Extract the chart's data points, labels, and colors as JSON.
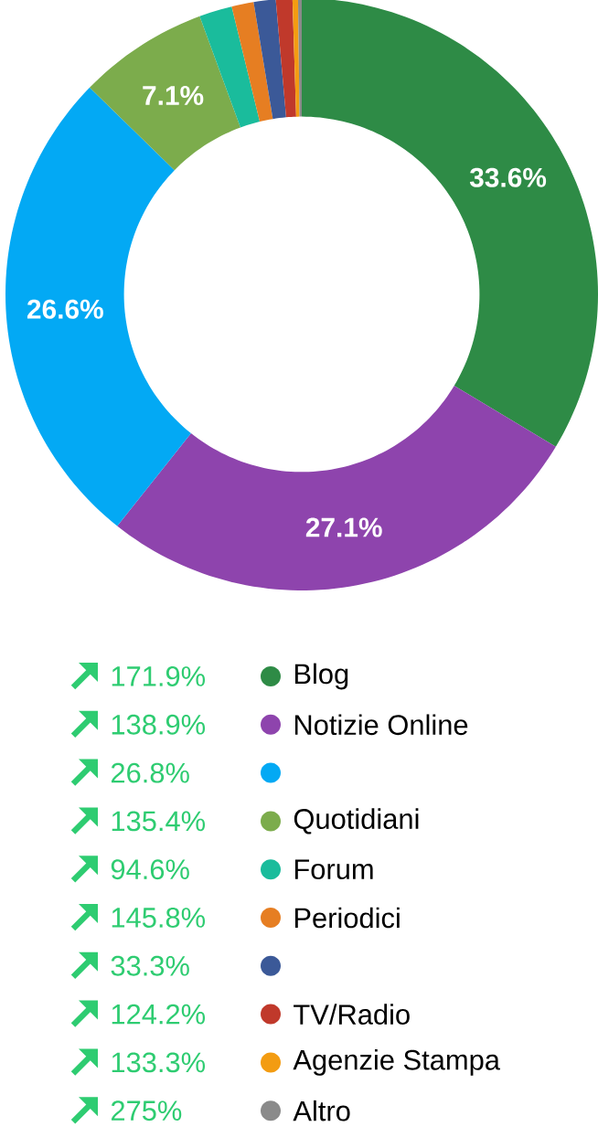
{
  "chart_data": {
    "type": "donut",
    "categories": [
      "Blog",
      "Notizie Online",
      null,
      "Quotidiani",
      "Forum",
      "Periodici",
      null,
      "TV/Radio",
      "Agenzie Stampa",
      "Altro"
    ],
    "values": [
      33.6,
      27.1,
      26.6,
      7.1,
      1.8,
      1.2,
      1.2,
      0.9,
      0.3,
      0.2
    ],
    "colors": [
      "#2e8b46",
      "#8e44ad",
      "#03a9f4",
      "#7cac4c",
      "#1abc9c",
      "#e67e22",
      "#3b5998",
      "#c0392b",
      "#f39c12",
      "#8a8a8a"
    ],
    "value_labels": [
      "33.6%",
      "27.1%",
      "26.6%",
      "7.1%",
      null,
      null,
      null,
      null,
      null,
      null
    ],
    "annotations": [
      "171.9%",
      "138.9%",
      "26.8%",
      "135.4%",
      "94.6%",
      "145.8%",
      "33.3%",
      "124.2%",
      "133.3%",
      "275%"
    ],
    "legend": "bottom"
  }
}
